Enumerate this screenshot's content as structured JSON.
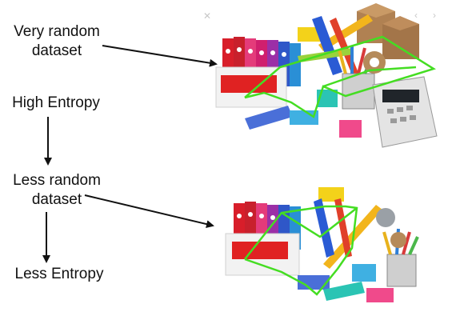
{
  "labels": {
    "very_random": "Very random dataset",
    "high_entropy": "High Entropy",
    "less_random": "Less random dataset",
    "less_entropy": "Less Entropy"
  },
  "controls": {
    "close_icon": "close-icon",
    "prev_icon": "chevron-left-icon",
    "next_icon": "chevron-right-icon"
  },
  "colors": {
    "text": "#111111",
    "arrow": "#111111",
    "path": "#44dd22",
    "controls": "#c8c8c8"
  }
}
